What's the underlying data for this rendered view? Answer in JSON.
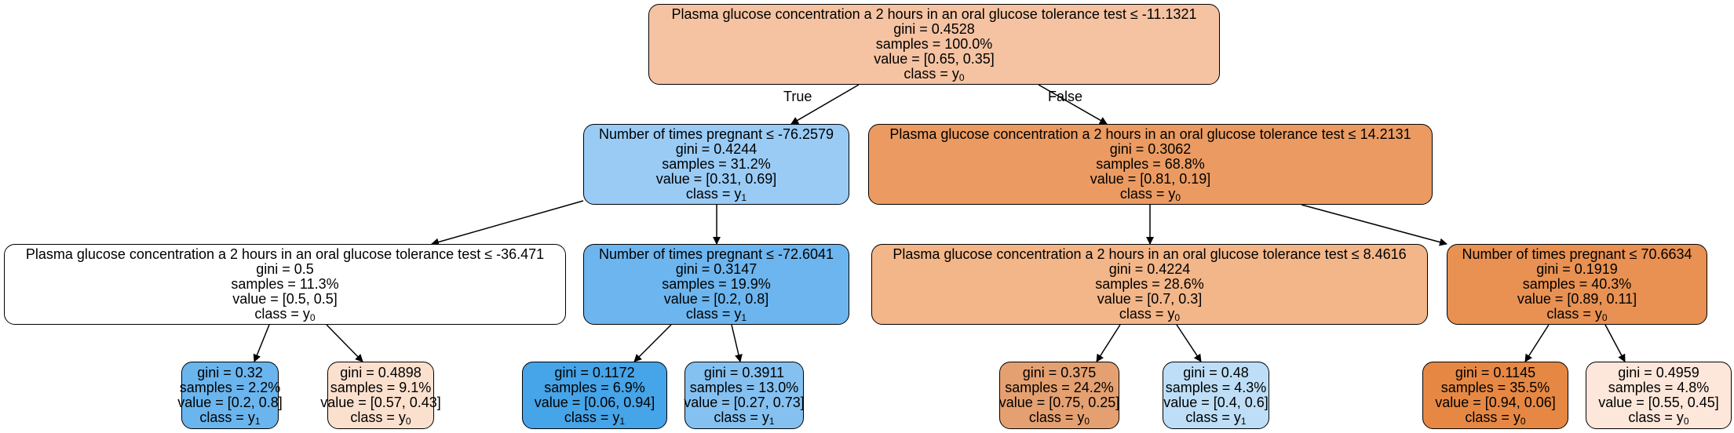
{
  "edge_labels": {
    "true_label": "True",
    "false_label": "False"
  },
  "nodes": {
    "root": {
      "question": "Plasma glucose concentration a 2 hours in an oral glucose tolerance test ≤ -11.1321",
      "gini": "gini = 0.4528",
      "samples": "samples = 100.0%",
      "value": "value = [0.65, 0.35]",
      "class_prefix": "class = y",
      "class_sub": "0",
      "fill": "#f5c3a2"
    },
    "n1": {
      "question": "Number of times pregnant ≤ -76.2579",
      "gini": "gini = 0.4244",
      "samples": "samples = 31.2%",
      "value": "value = [0.31, 0.69]",
      "class_prefix": "class = y",
      "class_sub": "1",
      "fill": "#99cbf5"
    },
    "n2": {
      "question": "Plasma glucose concentration a 2 hours in an oral glucose tolerance test ≤ 14.2131",
      "gini": "gini = 0.3062",
      "samples": "samples = 68.8%",
      "value": "value = [0.81, 0.19]",
      "class_prefix": "class = y",
      "class_sub": "0",
      "fill": "#eb9b61"
    },
    "n3": {
      "question": "Plasma glucose concentration a 2 hours in an oral glucose tolerance test ≤ -36.471",
      "gini": "gini = 0.5",
      "samples": "samples = 11.3%",
      "value": "value = [0.5, 0.5]",
      "class_prefix": "class = y",
      "class_sub": "0",
      "fill": "#ffffff"
    },
    "n4": {
      "question": "Number of times pregnant ≤ -72.6041",
      "gini": "gini = 0.3147",
      "samples": "samples = 19.9%",
      "value": "value = [0.2, 0.8]",
      "class_prefix": "class = y",
      "class_sub": "1",
      "fill": "#6db5ee"
    },
    "n5": {
      "question": "Plasma glucose concentration a 2 hours in an oral glucose tolerance test ≤ 8.4616",
      "gini": "gini = 0.4224",
      "samples": "samples = 28.6%",
      "value": "value = [0.7, 0.3]",
      "class_prefix": "class = y",
      "class_sub": "0",
      "fill": "#f3b689"
    },
    "n6": {
      "question": "Number of times pregnant ≤ 70.6634",
      "gini": "gini = 0.1919",
      "samples": "samples = 40.3%",
      "value": "value = [0.89, 0.11]",
      "class_prefix": "class = y",
      "class_sub": "0",
      "fill": "#e89152"
    },
    "l1": {
      "gini": "gini = 0.32",
      "samples": "samples = 2.2%",
      "value": "value = [0.2, 0.8]",
      "class_prefix": "class = y",
      "class_sub": "1",
      "fill": "#6ab5ee"
    },
    "l2": {
      "gini": "gini = 0.4898",
      "samples": "samples = 9.1%",
      "value": "value = [0.57, 0.43]",
      "class_prefix": "class = y",
      "class_sub": "0",
      "fill": "#fbe0ce"
    },
    "l3": {
      "gini": "gini = 0.1172",
      "samples": "samples = 6.9%",
      "value": "value = [0.06, 0.94]",
      "class_prefix": "class = y",
      "class_sub": "1",
      "fill": "#46a4e8"
    },
    "l4": {
      "gini": "gini = 0.3911",
      "samples": "samples = 13.0%",
      "value": "value = [0.27, 0.73]",
      "class_prefix": "class = y",
      "class_sub": "1",
      "fill": "#84c1f1"
    },
    "l5": {
      "gini": "gini = 0.375",
      "samples": "samples = 24.2%",
      "value": "value = [0.75, 0.25]",
      "class_prefix": "class = y",
      "class_sub": "0",
      "fill": "#e5a071"
    },
    "l6": {
      "gini": "gini = 0.48",
      "samples": "samples = 4.3%",
      "value": "value = [0.4, 0.6]",
      "class_prefix": "class = y",
      "class_sub": "1",
      "fill": "#bddef6"
    },
    "l7": {
      "gini": "gini = 0.1145",
      "samples": "samples = 35.5%",
      "value": "value = [0.94, 0.06]",
      "class_prefix": "class = y",
      "class_sub": "0",
      "fill": "#e68844"
    },
    "l8": {
      "gini": "gini = 0.4959",
      "samples": "samples = 4.8%",
      "value": "value = [0.55, 0.45]",
      "class_prefix": "class = y",
      "class_sub": "0",
      "fill": "#fce7da"
    }
  }
}
